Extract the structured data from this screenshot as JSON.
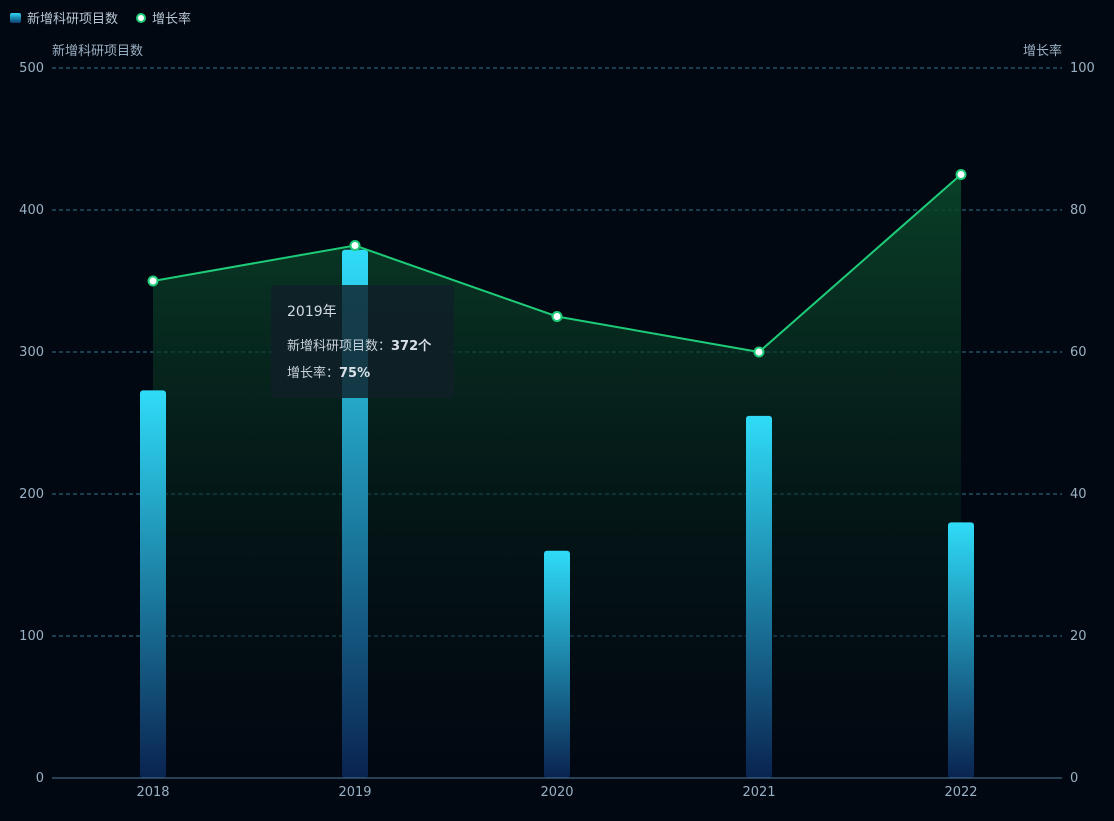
{
  "chart_data": {
    "type": "bar",
    "categories": [
      "2018",
      "2019",
      "2020",
      "2021",
      "2022"
    ],
    "series": [
      {
        "name": "新增科研项目数",
        "type": "bar",
        "axis": "left",
        "values": [
          273,
          372,
          160,
          255,
          180
        ]
      },
      {
        "name": "增长率",
        "type": "line",
        "axis": "right",
        "values": [
          70,
          75,
          65,
          60,
          85
        ]
      }
    ],
    "left_axis": {
      "label": "新增科研项目数",
      "min": 0,
      "max": 500,
      "ticks": [
        "0",
        "100",
        "200",
        "300",
        "400",
        "500"
      ]
    },
    "right_axis": {
      "label": "增长率",
      "min": 0,
      "max": 100,
      "ticks": [
        "0",
        "20",
        "40",
        "60",
        "80",
        "100"
      ]
    },
    "grid": "dashed",
    "legend_position": "top-left",
    "colors": {
      "background": "#020811",
      "bar_top": "#2fdcf8",
      "bar_bottom": "#0a2350",
      "line": "#1ecb79",
      "area_top": "#0b4a2c",
      "grid": "#3b8fb0",
      "axis_text": "#9ab0c4"
    }
  },
  "legend": {
    "bar_label": "新增科研项目数",
    "line_label": "增长率"
  },
  "tooltip": {
    "title": "2019年",
    "bar_label": "新增科研项目数：",
    "bar_value": "372个",
    "line_label": "增长率：",
    "line_value": "75%"
  }
}
